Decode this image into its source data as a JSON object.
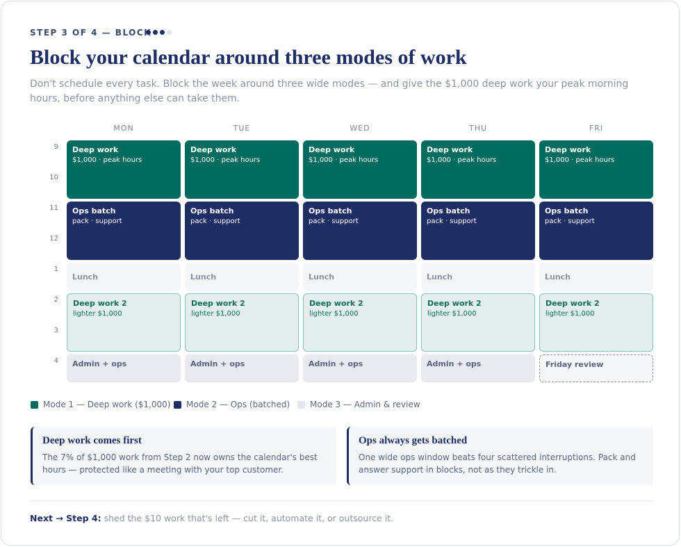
{
  "header": {
    "step": "STEP 3 OF 4 — BLOCK",
    "title": "Block your calendar around three modes of work",
    "subtitle": "Don't schedule every task. Block the week around three wide modes — and give the $1,000 deep work your peak morning hours, before anything else can take them."
  },
  "calendar": {
    "hours": [
      "9",
      "10",
      "11",
      "12",
      "1",
      "2",
      "3",
      "4"
    ],
    "days": [
      {
        "name": "MON",
        "blocks": [
          {
            "title": "Deep work",
            "sub": "$1,000 · peak hours"
          },
          {
            "title": "Ops batch",
            "sub": "pack · support"
          },
          {
            "title": "Lunch"
          },
          {
            "title": "Deep work 2",
            "sub": "lighter $1,000"
          },
          {
            "title": "Admin + ops"
          }
        ]
      },
      {
        "name": "TUE",
        "blocks": [
          {
            "title": "Deep work",
            "sub": "$1,000 · peak hours"
          },
          {
            "title": "Ops batch",
            "sub": "pack · support"
          },
          {
            "title": "Lunch"
          },
          {
            "title": "Deep work 2",
            "sub": "lighter $1,000"
          },
          {
            "title": "Admin + ops"
          }
        ]
      },
      {
        "name": "WED",
        "blocks": [
          {
            "title": "Deep work",
            "sub": "$1,000 · peak hours"
          },
          {
            "title": "Ops batch",
            "sub": "pack · support"
          },
          {
            "title": "Lunch"
          },
          {
            "title": "Deep work 2",
            "sub": "lighter $1,000"
          },
          {
            "title": "Admin + ops"
          }
        ]
      },
      {
        "name": "THU",
        "blocks": [
          {
            "title": "Deep work",
            "sub": "$1,000 · peak hours"
          },
          {
            "title": "Ops batch",
            "sub": "pack · support"
          },
          {
            "title": "Lunch"
          },
          {
            "title": "Deep work 2",
            "sub": "lighter $1,000"
          },
          {
            "title": "Admin + ops"
          }
        ]
      },
      {
        "name": "FRI",
        "blocks": [
          {
            "title": "Deep work",
            "sub": "$1,000 · peak hours"
          },
          {
            "title": "Ops batch",
            "sub": "pack · support"
          },
          {
            "title": "Lunch"
          },
          {
            "title": "Deep work 2",
            "sub": "lighter $1,000"
          },
          {
            "title": "Friday review"
          }
        ]
      }
    ]
  },
  "legend": [
    "Mode 1 — Deep work ($1,000)",
    "Mode 2 — Ops (batched)",
    "Mode 3 — Admin & review"
  ],
  "cards": [
    {
      "title": "Deep work comes first",
      "text": "The 7% of $1,000 work from Step 2 now owns the calendar's best hours — protected like a meeting with your top customer."
    },
    {
      "title": "Ops always gets batched",
      "text": "One wide ops window beats four scattered interruptions. Pack and answer support in blocks, not as they trickle in."
    }
  ],
  "footer": {
    "lead": "Next → Step 4:",
    "text": "shed the $10 work that's left — cut it, automate it, or outsource it."
  }
}
